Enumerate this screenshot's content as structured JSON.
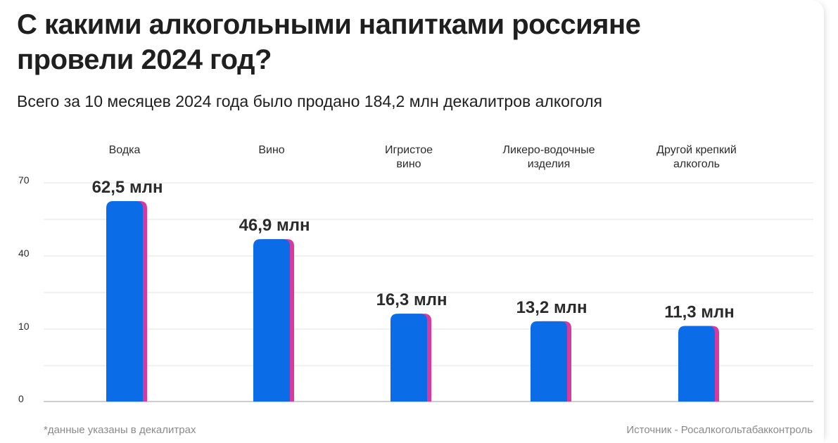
{
  "title": "С какими алкогольными напитками россияне провели 2024 год?",
  "subtitle": "Всего за 10 месяцев 2024 года было продано 184,2 млн декалитров алкоголя",
  "footnote": "*данные указаны в декалитрах",
  "source": "Источник - Росалкогольтабакконтроль",
  "colors": {
    "bar": "#0a6ce6",
    "bar_shadow": "#d63aa0",
    "grid": "#e3e3e3",
    "axis": "#bdbdbd"
  },
  "chart_data": {
    "type": "bar",
    "categories": [
      "Водка",
      "Вино",
      "Игристое вино",
      "Ликеро-водочные изделия",
      "Другой крепкий алкоголь"
    ],
    "category_lines": [
      [
        "Водка"
      ],
      [
        "Вино"
      ],
      [
        "Игристое",
        "вино"
      ],
      [
        "Ликеро-водочные",
        "изделия"
      ],
      [
        "Другой крепкий",
        "алкоголь"
      ]
    ],
    "values": [
      62.5,
      46.9,
      16.3,
      13.2,
      11.3
    ],
    "value_labels": [
      "62,5 млн",
      "46,9 млн",
      "16,3 млн",
      "13,2 млн",
      "11,3 млн"
    ],
    "unit": "млн",
    "y_ticks": [
      "0",
      "10",
      "40",
      "70"
    ],
    "grid": true,
    "legend": "none"
  }
}
